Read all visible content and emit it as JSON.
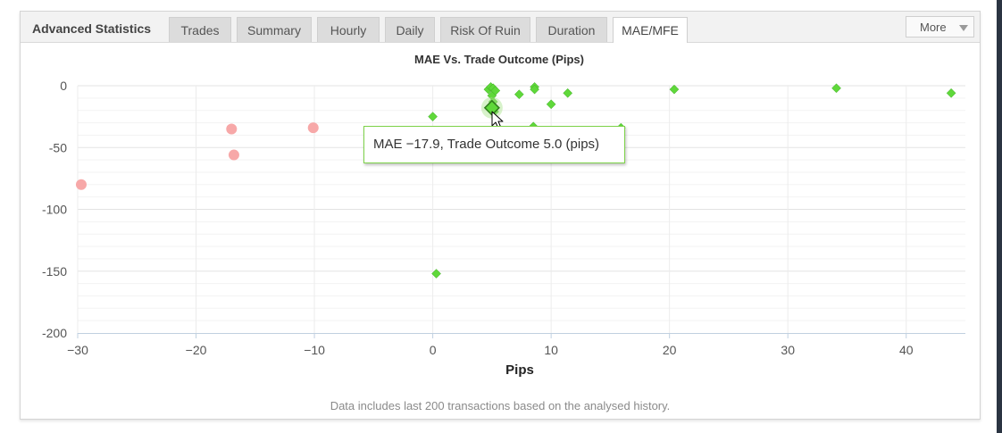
{
  "panel": {
    "title": "Advanced Statistics",
    "tabs": [
      {
        "label": "Trades",
        "active": false
      },
      {
        "label": "Summary",
        "active": false
      },
      {
        "label": "Hourly",
        "active": false
      },
      {
        "label": "Daily",
        "active": false
      },
      {
        "label": "Risk Of Ruin",
        "active": false
      },
      {
        "label": "Duration",
        "active": false
      },
      {
        "label": "MAE/MFE",
        "active": true
      }
    ],
    "more_label": "More",
    "more_icon": "caret-down-icon"
  },
  "chart_data": {
    "type": "scatter",
    "title": "MAE Vs. Trade Outcome (Pips)",
    "xlabel": "Pips",
    "ylabel": "",
    "xlim": [
      -30,
      45
    ],
    "ylim": [
      -200,
      0
    ],
    "x_ticks": [
      -30,
      -20,
      -10,
      0,
      10,
      20,
      30,
      40
    ],
    "y_ticks": [
      0,
      -50,
      -100,
      -150,
      -200
    ],
    "grid": true,
    "colors": {
      "loss": "#f7a8a8",
      "win": "#5fd83a",
      "win_stroke": "#3aa820",
      "highlight_stroke": "#2e7d1a"
    },
    "series": [
      {
        "marker": "circle",
        "points": [
          [
            -29.7,
            -80
          ],
          [
            -17.0,
            -35
          ],
          [
            -16.8,
            -56
          ],
          [
            -10.1,
            -34
          ]
        ]
      },
      {
        "marker": "diamond",
        "points": [
          [
            0.0,
            -25
          ],
          [
            0.3,
            -152
          ],
          [
            4.7,
            -3
          ],
          [
            4.9,
            -1
          ],
          [
            5.0,
            -8
          ],
          [
            5.1,
            -2
          ],
          [
            5.1,
            -13
          ],
          [
            5.3,
            -4
          ],
          [
            5.2,
            -21
          ],
          [
            7.3,
            -7
          ],
          [
            8.6,
            -1
          ],
          [
            8.5,
            -33
          ],
          [
            8.6,
            -3
          ],
          [
            10.0,
            -15
          ],
          [
            11.4,
            -6
          ],
          [
            15.9,
            -34
          ],
          [
            20.4,
            -3
          ],
          [
            34.1,
            -2
          ],
          [
            43.8,
            -6
          ]
        ]
      }
    ],
    "highlight": {
      "x": 5.0,
      "y": -17.9
    },
    "tooltip": "MAE −17.9, Trade Outcome 5.0 (pips)"
  },
  "footer_note": "Data includes last 200 transactions based on the analysed history."
}
